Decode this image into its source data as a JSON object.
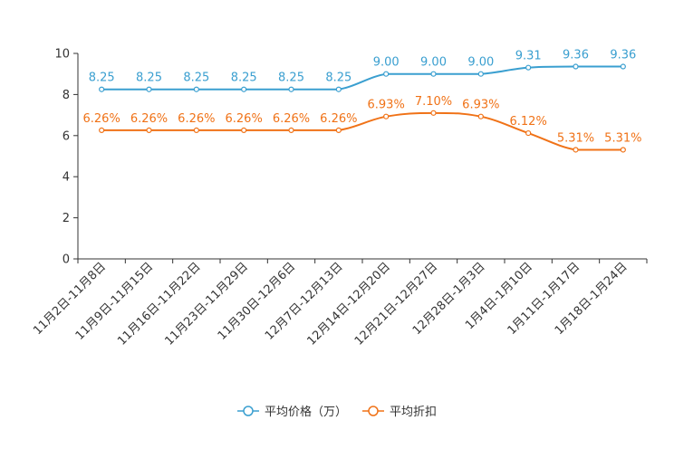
{
  "chart_data": {
    "type": "line",
    "title": "",
    "xlabel": "",
    "ylabel": "",
    "ylim": [
      0,
      10
    ],
    "yticks": [
      0,
      2,
      4,
      6,
      8,
      10
    ],
    "grid": false,
    "legend_position": "bottom",
    "categories": [
      "11月2日-11月8日",
      "11月9日-11月15日",
      "11月16日-11月22日",
      "11月23日-11月29日",
      "11月30日-12月6日",
      "12月7日-12月13日",
      "12月14日-12月20日",
      "12月21日-12月27日",
      "12月28日-1月3日",
      "1月4日-1月10日",
      "1月11日-1月17日",
      "1月18日-1月24日"
    ],
    "series": [
      {
        "name": "平均价格（万）",
        "color": "#3a9fd0",
        "values": [
          8.25,
          8.25,
          8.25,
          8.25,
          8.25,
          8.25,
          9.0,
          9.0,
          9.0,
          9.31,
          9.36,
          9.36
        ],
        "labels": [
          "8.25",
          "8.25",
          "8.25",
          "8.25",
          "8.25",
          "8.25",
          "9.00",
          "9.00",
          "9.00",
          "9.31",
          "9.36",
          "9.36"
        ]
      },
      {
        "name": "平均折扣",
        "color": "#f07217",
        "values": [
          6.26,
          6.26,
          6.26,
          6.26,
          6.26,
          6.26,
          6.93,
          7.1,
          6.93,
          6.12,
          5.31,
          5.31
        ],
        "labels": [
          "6.26%",
          "6.26%",
          "6.26%",
          "6.26%",
          "6.26%",
          "6.26%",
          "6.93%",
          "7.10%",
          "6.93%",
          "6.12%",
          "5.31%",
          "5.31%"
        ]
      }
    ]
  }
}
